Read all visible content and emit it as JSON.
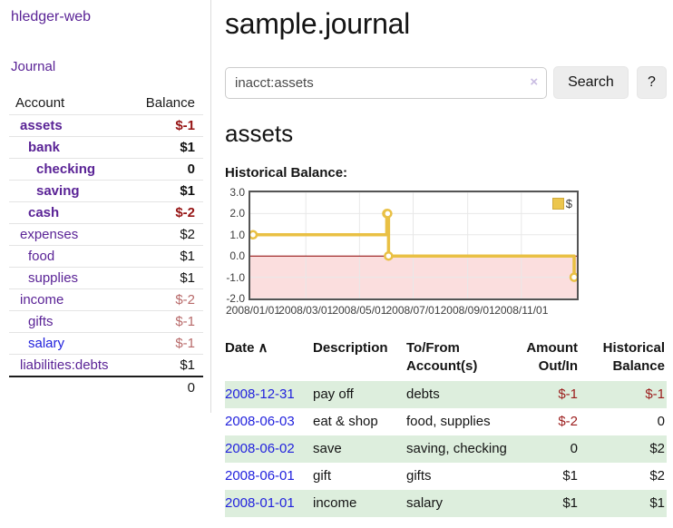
{
  "sidebar": {
    "app_title": "hledger-web",
    "nav_journal": "Journal",
    "col_account": "Account",
    "col_balance": "Balance",
    "accounts": [
      {
        "name": "assets",
        "balance": "$-1",
        "depth": 0,
        "bold": true,
        "neg": "strong"
      },
      {
        "name": "bank",
        "balance": "$1",
        "depth": 1,
        "bold": true,
        "neg": "none"
      },
      {
        "name": "checking",
        "balance": "0",
        "depth": 2,
        "bold": true,
        "neg": "none"
      },
      {
        "name": "saving",
        "balance": "$1",
        "depth": 2,
        "bold": true,
        "neg": "none"
      },
      {
        "name": "cash",
        "balance": "$-2",
        "depth": 1,
        "bold": true,
        "neg": "strong"
      },
      {
        "name": "expenses",
        "balance": "$2",
        "depth": 0,
        "bold": false,
        "neg": "none"
      },
      {
        "name": "food",
        "balance": "$1",
        "depth": 1,
        "bold": false,
        "neg": "none"
      },
      {
        "name": "supplies",
        "balance": "$1",
        "depth": 1,
        "bold": false,
        "neg": "none"
      },
      {
        "name": "income",
        "balance": "$-2",
        "depth": 0,
        "bold": false,
        "neg": "soft"
      },
      {
        "name": "gifts",
        "balance": "$-1",
        "depth": 1,
        "bold": false,
        "neg": "soft"
      },
      {
        "name": "salary",
        "balance": "$-1",
        "depth": 1,
        "bold": false,
        "neg": "soft",
        "link": "blue"
      },
      {
        "name": "liabilities:debts",
        "balance": "$1",
        "depth": 0,
        "bold": false,
        "neg": "none"
      }
    ],
    "total": "0"
  },
  "main": {
    "title": "sample.journal",
    "account_heading": "assets",
    "chart_label": "Historical Balance:"
  },
  "search": {
    "value": "inacct:assets",
    "clear_icon": "×",
    "submit_label": "Search",
    "help_label": "?"
  },
  "chart_data": {
    "type": "line",
    "step": true,
    "title": "Historical Balance:",
    "series": [
      {
        "name": "$",
        "color": "#e9c044",
        "points": [
          [
            "2008-01-01",
            1
          ],
          [
            "2008-06-01",
            2
          ],
          [
            "2008-06-02",
            2
          ],
          [
            "2008-06-03",
            0
          ],
          [
            "2008-12-31",
            -1
          ]
        ]
      }
    ],
    "xlim": [
      "2008-01-01",
      "2008-12-31"
    ],
    "ylim": [
      -2,
      3
    ],
    "y_ticks": [
      "3.0",
      "2.0",
      "1.0",
      "0.0",
      "-1.0",
      "-2.0"
    ],
    "x_ticks": [
      "2008/01/01",
      "2008/03/01",
      "2008/05/01",
      "2008/07/01",
      "2008/09/01",
      "2008/11/01"
    ],
    "grid": true,
    "legend": {
      "position": "top-right",
      "label": "$"
    },
    "negative_fill": "#fbdede",
    "zero_line": "#8b0000",
    "grid_color": "#e8e8e8",
    "border_color": "#545454"
  },
  "register": {
    "columns": [
      "Date",
      "Description",
      "To/From Account(s)",
      "Amount Out/In",
      "Historical Balance"
    ],
    "sort_icon": "∧",
    "rows": [
      {
        "date": "2008-12-31",
        "description": "pay off",
        "accounts": "debts",
        "amount": "$-1",
        "balance": "$-1",
        "amount_neg": true,
        "balance_neg": true
      },
      {
        "date": "2008-06-03",
        "description": "eat & shop",
        "accounts": "food, supplies",
        "amount": "$-2",
        "balance": "0",
        "amount_neg": true,
        "balance_neg": false
      },
      {
        "date": "2008-06-02",
        "description": "save",
        "accounts": "saving, checking",
        "amount": "0",
        "balance": "$2",
        "amount_neg": false,
        "balance_neg": false
      },
      {
        "date": "2008-06-01",
        "description": "gift",
        "accounts": "gifts",
        "amount": "$1",
        "balance": "$2",
        "amount_neg": false,
        "balance_neg": false
      },
      {
        "date": "2008-01-01",
        "description": "income",
        "accounts": "salary",
        "amount": "$1",
        "balance": "$1",
        "amount_neg": false,
        "balance_neg": false
      }
    ]
  }
}
